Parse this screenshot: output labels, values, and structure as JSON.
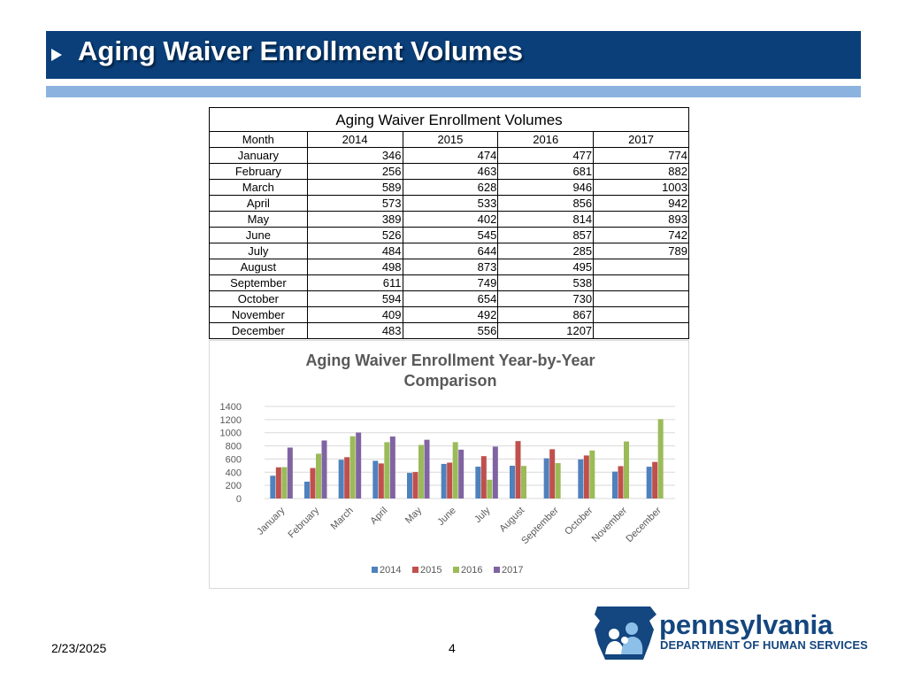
{
  "header": {
    "title": "Aging Waiver Enrollment Volumes"
  },
  "table": {
    "caption": "Aging Waiver Enrollment Volumes",
    "columns": [
      "Month",
      "2014",
      "2015",
      "2016",
      "2017"
    ],
    "rows": [
      [
        "January",
        "346",
        "474",
        "477",
        "774"
      ],
      [
        "February",
        "256",
        "463",
        "681",
        "882"
      ],
      [
        "March",
        "589",
        "628",
        "946",
        "1003"
      ],
      [
        "April",
        "573",
        "533",
        "856",
        "942"
      ],
      [
        "May",
        "389",
        "402",
        "814",
        "893"
      ],
      [
        "June",
        "526",
        "545",
        "857",
        "742"
      ],
      [
        "July",
        "484",
        "644",
        "285",
        "789"
      ],
      [
        "August",
        "498",
        "873",
        "495",
        ""
      ],
      [
        "September",
        "611",
        "749",
        "538",
        ""
      ],
      [
        "October",
        "594",
        "654",
        "730",
        ""
      ],
      [
        "November",
        "409",
        "492",
        "867",
        ""
      ],
      [
        "December",
        "483",
        "556",
        "1207",
        ""
      ]
    ]
  },
  "chart_data": {
    "type": "bar",
    "title": "Aging Waiver Enrollment Year-by-Year Comparison",
    "title_lines": [
      "Aging Waiver Enrollment Year-by-Year",
      "Comparison"
    ],
    "categories": [
      "January",
      "February",
      "March",
      "April",
      "May",
      "June",
      "July",
      "August",
      "September",
      "October",
      "November",
      "December"
    ],
    "series": [
      {
        "name": "2014",
        "color": "#4f81bd",
        "values": [
          346,
          256,
          589,
          573,
          389,
          526,
          484,
          498,
          611,
          594,
          409,
          483
        ]
      },
      {
        "name": "2015",
        "color": "#c0504d",
        "values": [
          474,
          463,
          628,
          533,
          402,
          545,
          644,
          873,
          749,
          654,
          492,
          556
        ]
      },
      {
        "name": "2016",
        "color": "#9bbb59",
        "values": [
          477,
          681,
          946,
          856,
          814,
          857,
          285,
          495,
          538,
          730,
          867,
          1207
        ]
      },
      {
        "name": "2017",
        "color": "#8064a2",
        "values": [
          774,
          882,
          1003,
          942,
          893,
          742,
          789,
          null,
          null,
          null,
          null,
          null
        ]
      }
    ],
    "ylim": [
      0,
      1400
    ],
    "yticks": [
      0,
      200,
      400,
      600,
      800,
      1000,
      1200,
      1400
    ],
    "grid": true,
    "legend": "bottom",
    "xlabel": "",
    "ylabel": ""
  },
  "footer": {
    "date": "2/23/2025",
    "page": "4"
  },
  "logo": {
    "word": "pennsylvania",
    "dept": "DEPARTMENT OF HUMAN SERVICES"
  }
}
